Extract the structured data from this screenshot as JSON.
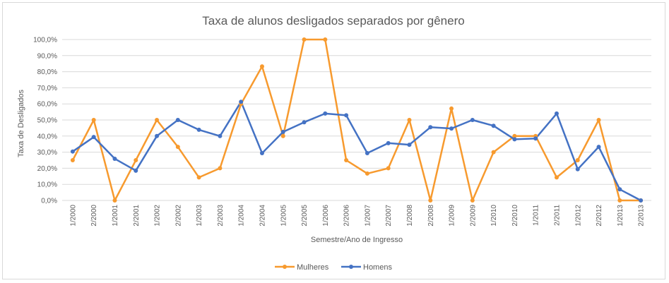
{
  "chart_data": {
    "type": "line",
    "title": "Taxa de alunos desligados separados por gênero",
    "xlabel": "Semestre/Ano de Ingresso",
    "ylabel": "Taxa de  Desligados",
    "ylim": [
      0,
      100
    ],
    "y_ticks": [
      "0,0%",
      "10,0%",
      "20,0%",
      "30,0%",
      "40,0%",
      "50,0%",
      "60,0%",
      "70,0%",
      "80,0%",
      "90,0%",
      "100,0%"
    ],
    "grid": true,
    "legend_position": "bottom",
    "categories": [
      "1/2000",
      "2/2000",
      "1/2001",
      "2/2001",
      "1/2002",
      "2/2002",
      "1/2003",
      "2/2003",
      "1/2004",
      "2/2004",
      "1/2005",
      "2/2005",
      "1/2006",
      "2/2006",
      "1/2007",
      "2/2007",
      "1/2008",
      "2/2008",
      "1/2009",
      "2/2009",
      "1/2010",
      "2/2010",
      "1/2011",
      "2/2011",
      "1/2012",
      "2/2012",
      "1/2013",
      "2/2013"
    ],
    "series": [
      {
        "name": "Mulheres",
        "color": "#f79a2e",
        "values": [
          25,
          50,
          0,
          25,
          50,
          33.3,
          14.3,
          20,
          60,
          83.3,
          40,
          100,
          100,
          25,
          16.7,
          20,
          50,
          0,
          57.1,
          0,
          30,
          40,
          40,
          14.3,
          25,
          50,
          0,
          0
        ]
      },
      {
        "name": "Homens",
        "color": "#4472c4",
        "values": [
          30.4,
          39.4,
          25.9,
          18.5,
          40,
          50,
          43.9,
          40,
          61.3,
          29.4,
          42.6,
          48.6,
          54,
          52.9,
          29.4,
          35.6,
          34.6,
          45.5,
          44.7,
          50,
          46.4,
          38,
          38.5,
          54,
          19.4,
          33.3,
          6.9,
          0
        ]
      }
    ]
  }
}
